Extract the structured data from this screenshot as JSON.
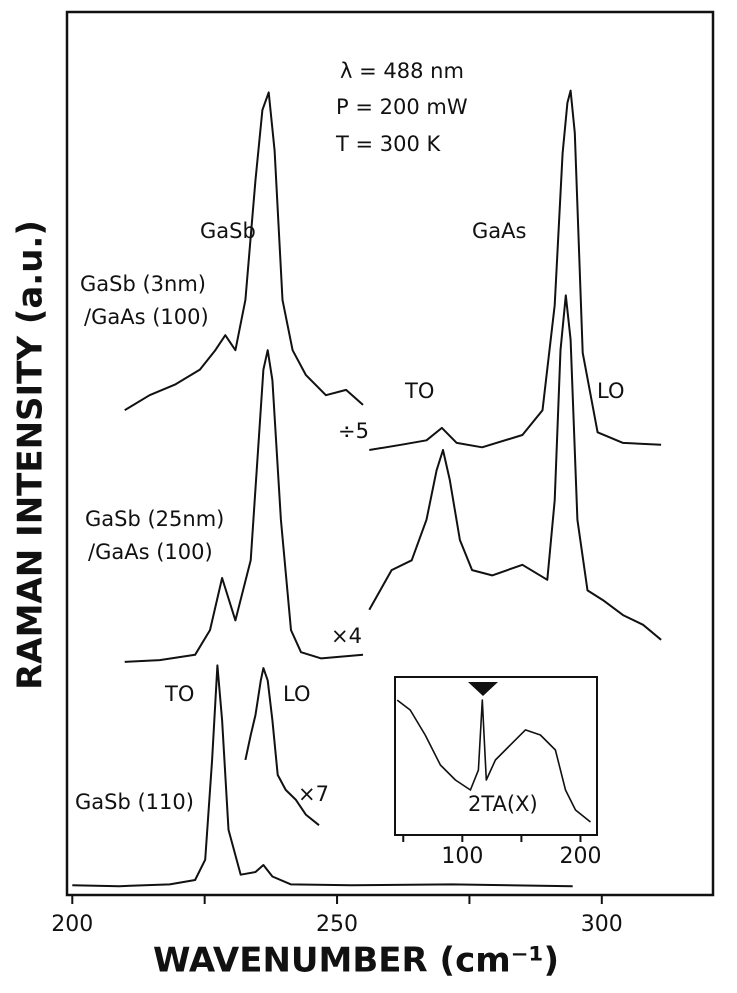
{
  "chart_data": [
    {
      "type": "line",
      "xlabel": "WAVENUMBER (cm⁻¹)",
      "ylabel": "RAMAN INTENSITY (a.u.)",
      "xlim": [
        199,
        321
      ],
      "ylim": [
        0,
        100
      ],
      "xticks": [
        200,
        250,
        300
      ],
      "xminor_ticks": [
        225,
        275
      ],
      "annotations": [
        "λ = 488 nm",
        "P = 200 mW",
        "T = 300 K",
        "GaSb",
        "GaAs",
        "GaSb (3nm)",
        "/GaAs (100)",
        "TO",
        "LO",
        "÷5",
        "GaSb (25nm)",
        "/GaAs (100)",
        "×4",
        "TO",
        "LO",
        "×7",
        "GaSb (110)"
      ],
      "series": [
        {
          "color": "#111111",
          "x": [
            200,
            208.9,
            218.4,
            223.2,
            225.1,
            226.4,
            227.4,
            228.3,
            229.5,
            231.8,
            234.6,
            236.1,
            237.8,
            241.3,
            252.7,
            271.7,
            294.5
          ],
          "values": [
            1.1,
            1.0,
            1.2,
            1.7,
            4.0,
            15.3,
            26.0,
            19.8,
            7.4,
            2.3,
            2.6,
            3.4,
            2.1,
            1.2,
            1.1,
            1.2,
            1.0
          ]
        },
        {
          "color": "#111111",
          "x": [
            232.7,
            233.7,
            234.6,
            235.6,
            236.1,
            236.9,
            237.8,
            238.8,
            240.3,
            242.2,
            244.1,
            246.6
          ],
          "values": [
            15.3,
            18.1,
            20.4,
            24.3,
            25.7,
            24.3,
            19.8,
            13.6,
            11.9,
            10.8,
            9.1,
            7.9
          ]
        },
        {
          "color": "#111111",
          "x": [
            209.9,
            216.5,
            223.2,
            226.0,
            228.3,
            230.8,
            233.7,
            235.2,
            236.1,
            236.9,
            237.8,
            239.4,
            241.3,
            243.2,
            247.0,
            254.9
          ],
          "values": [
            26.4,
            26.6,
            27.2,
            30.0,
            35.9,
            31.1,
            37.9,
            51.5,
            59.5,
            61.7,
            58.3,
            42.5,
            30.0,
            27.5,
            26.8,
            27.2
          ]
        },
        {
          "color": "#111111",
          "x": [
            256.1,
            260.3,
            264.1,
            266.9,
            268.8,
            270.0,
            271.3,
            273.2,
            275.5,
            279.3,
            285.0,
            289.7,
            291.1,
            292.2,
            293.2,
            294.1,
            295.4,
            297.3,
            300.2,
            304.0,
            307.8,
            311.2
          ],
          "values": [
            32.3,
            36.8,
            37.9,
            42.5,
            48.1,
            50.4,
            47.0,
            40.2,
            36.8,
            36.2,
            37.4,
            35.7,
            44.7,
            61.7,
            67.9,
            62.9,
            42.5,
            34.5,
            33.4,
            31.7,
            30.6,
            28.9
          ]
        },
        {
          "color": "#111111",
          "x": [
            209.9,
            214.6,
            219.4,
            224.1,
            227.0,
            228.9,
            230.8,
            232.7,
            234.6,
            235.9,
            237.1,
            238.2,
            239.7,
            241.6,
            244.1,
            247.9,
            251.7,
            254.9
          ],
          "values": [
            54.9,
            56.6,
            57.8,
            59.5,
            61.7,
            63.4,
            61.7,
            67.4,
            81.0,
            88.9,
            90.9,
            84.3,
            67.4,
            61.7,
            58.9,
            56.6,
            57.2,
            55.5
          ]
        },
        {
          "color": "#111111",
          "x": [
            256.1,
            262.2,
            266.9,
            269.8,
            272.6,
            277.4,
            285.0,
            288.8,
            291.1,
            292.6,
            293.5,
            294.1,
            294.9,
            296.4,
            299.2,
            304.0,
            311.2
          ],
          "values": [
            50.4,
            51.0,
            51.5,
            52.9,
            51.2,
            50.7,
            52.1,
            54.9,
            66.8,
            84.0,
            89.7,
            91.1,
            86.3,
            61.4,
            52.4,
            51.2,
            51.0
          ]
        }
      ]
    },
    {
      "type": "line",
      "xlim": [
        43,
        214
      ],
      "ylim": [
        0,
        100
      ],
      "xticks": [
        100,
        200
      ],
      "xminor_ticks": [
        50,
        150
      ],
      "annotations": [
        "2TA(X)"
      ],
      "series": [
        {
          "color": "#111111",
          "x": [
            44.9,
            55.9,
            68.6,
            81.4,
            94.1,
            106.8,
            113.6,
            116.9,
            120.3,
            128.0,
            140.7,
            153.4,
            166.1,
            178.8,
            187.3,
            195.8,
            208.5
          ],
          "values": [
            85.4,
            79.1,
            63.3,
            44.3,
            34.8,
            28.5,
            41.1,
            85.4,
            34.8,
            47.5,
            57.0,
            66.5,
            63.3,
            53.8,
            28.5,
            15.8,
            8.2
          ]
        }
      ]
    }
  ]
}
